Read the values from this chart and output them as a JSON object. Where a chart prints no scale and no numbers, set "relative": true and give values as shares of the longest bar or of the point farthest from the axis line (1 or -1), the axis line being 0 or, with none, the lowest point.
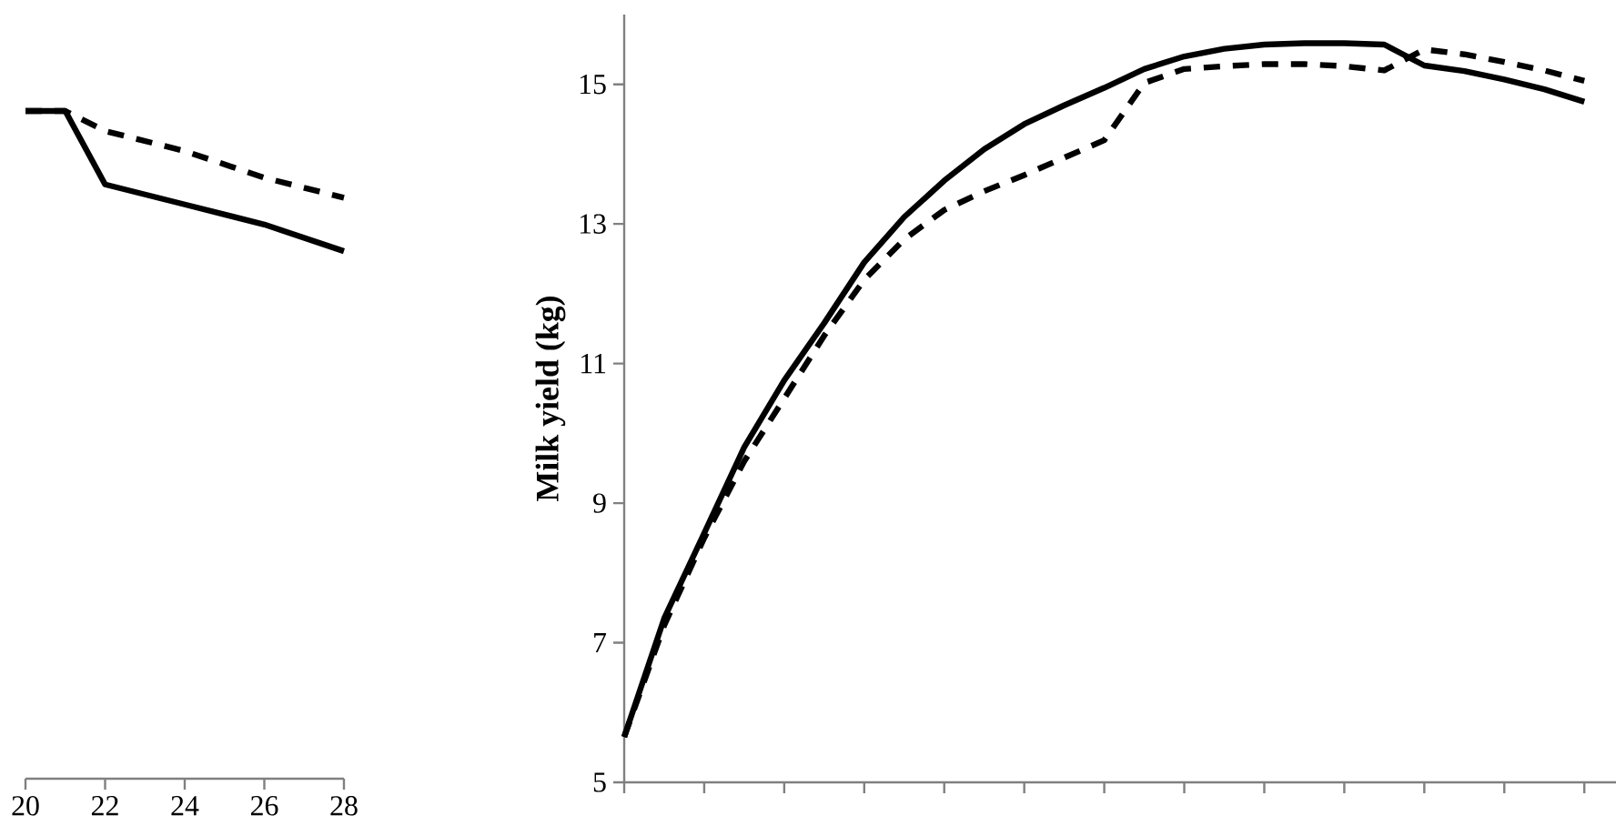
{
  "chart_data": [
    {
      "type": "line",
      "relative": true,
      "x": [
        20,
        21,
        22,
        24,
        26,
        28
      ],
      "xlim": [
        20,
        28
      ],
      "xticks": [
        20,
        22,
        24,
        26,
        28
      ],
      "tick_labels": "x",
      "series": [
        {
          "color": "#000000",
          "line_style": "solid",
          "values": [
            1.0,
            1.0,
            0.89,
            0.86,
            0.83,
            0.79
          ]
        },
        {
          "color": "#000000",
          "line_style": "dashed",
          "values": [
            1.0,
            1.0,
            0.97,
            0.94,
            0.9,
            0.87
          ]
        }
      ]
    },
    {
      "type": "line",
      "ylabel": "Milk yield (kg)",
      "categories": [
        null,
        null,
        null,
        null,
        null,
        null,
        null,
        null,
        null,
        null,
        null,
        null,
        null,
        null,
        null,
        null,
        null,
        null,
        null,
        null,
        null,
        null,
        null,
        null,
        null
      ],
      "ylim": [
        5,
        16
      ],
      "yticks": [
        5,
        7,
        9,
        11,
        13,
        15
      ],
      "series": [
        {
          "color": "#000000",
          "line_style": "solid",
          "values": [
            5.65,
            7.35,
            8.57,
            9.8,
            10.76,
            11.58,
            12.45,
            13.1,
            13.62,
            14.07,
            14.43,
            14.7,
            14.95,
            15.22,
            15.4,
            15.51,
            15.57,
            15.59,
            15.59,
            15.57,
            15.27,
            15.19,
            15.07,
            14.93,
            14.75
          ]
        },
        {
          "color": "#000000",
          "line_style": "dashed",
          "values": [
            5.65,
            7.25,
            8.5,
            9.6,
            10.5,
            11.4,
            12.2,
            12.78,
            13.2,
            13.47,
            13.7,
            13.95,
            14.2,
            15.02,
            15.22,
            15.26,
            15.29,
            15.29,
            15.26,
            15.2,
            15.5,
            15.43,
            15.32,
            15.2,
            15.05
          ]
        }
      ]
    }
  ]
}
